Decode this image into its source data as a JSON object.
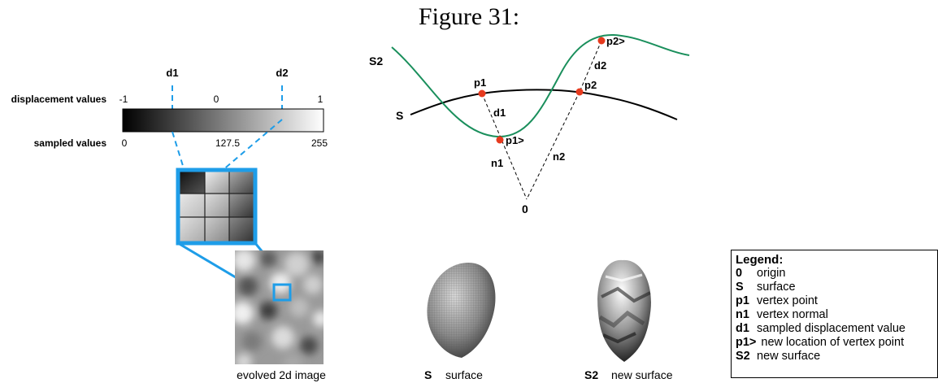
{
  "title": "Figure 31:",
  "colorbar": {
    "d1": "d1",
    "d2": "d2",
    "displacement_label": "displacement values",
    "sampled_label": "sampled values",
    "disp_ticks": [
      "-1",
      "0",
      "1"
    ],
    "sampled_ticks": [
      "0",
      "127.5",
      "255"
    ]
  },
  "curve_labels": {
    "S2": "S2",
    "S": "S",
    "p1": "p1",
    "p2": "p2",
    "p1n": "p1>",
    "p2n": "p2>",
    "d1": "d1",
    "d2": "d2",
    "n1": "n1",
    "n2": "n2",
    "origin": "0"
  },
  "captions": {
    "image": "evolved 2d image",
    "s_key": "S",
    "s_text": "surface",
    "s2_key": "S2",
    "s2_text": "new surface"
  },
  "legend": {
    "title": "Legend:",
    "items": [
      {
        "key": "0",
        "text": "origin"
      },
      {
        "key": "S",
        "text": "surface"
      },
      {
        "key": "p1",
        "text": "vertex point"
      },
      {
        "key": "n1",
        "text": "vertex normal"
      },
      {
        "key": "d1",
        "text": "sampled displacement value"
      },
      {
        "key": "p1>",
        "text": "new location of vertex point"
      },
      {
        "key": "S2",
        "text": "new surface"
      }
    ]
  },
  "colors": {
    "accent": "#1e9de8",
    "green": "#1a8f5c",
    "red": "#e63a1e"
  }
}
